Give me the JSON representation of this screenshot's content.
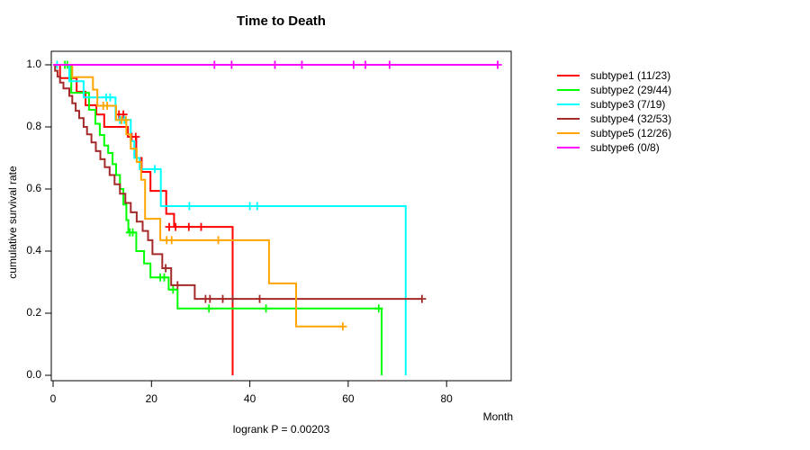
{
  "chart_data": {
    "type": "line",
    "subtype": "kaplan-meier-step",
    "title": "Time to Death",
    "xlabel": "Month",
    "ylabel": "cumulative survival rate",
    "annotation": "logrank P = 0.00203",
    "xlim": [
      0,
      93
    ],
    "ylim": [
      0.0,
      1.0
    ],
    "x_ticks": [
      0,
      20,
      40,
      60,
      80
    ],
    "y_ticks": [
      0.0,
      0.2,
      0.4,
      0.6,
      0.8,
      1.0
    ],
    "grid": false,
    "legend_position": "right-outside",
    "frame": "box",
    "series": [
      {
        "name": "subtype1",
        "label": "subtype1 (11/23)",
        "events": "11/23",
        "color": "#FF0000",
        "steps": [
          [
            1.4,
            0.957
          ],
          [
            4.8,
            0.913
          ],
          [
            6.6,
            0.87
          ],
          [
            8.8,
            0.84
          ],
          [
            10.4,
            0.8
          ],
          [
            15.2,
            0.768
          ],
          [
            16.9,
            0.7
          ],
          [
            18.0,
            0.655
          ],
          [
            19.8,
            0.594
          ],
          [
            23.0,
            0.52
          ],
          [
            24.6,
            0.478
          ],
          [
            36.5,
            0.0
          ]
        ],
        "end": 36.5,
        "censored": [
          [
            13.4,
            0.84
          ],
          [
            14.3,
            0.84
          ],
          [
            16.0,
            0.768
          ],
          [
            16.8,
            0.768
          ],
          [
            23.6,
            0.478
          ],
          [
            24.9,
            0.478
          ],
          [
            27.6,
            0.478
          ],
          [
            30.1,
            0.478
          ]
        ]
      },
      {
        "name": "subtype2",
        "label": "subtype2 (29/44)",
        "events": "29/44",
        "color": "#00FF00",
        "steps": [
          [
            3.7,
            0.91
          ],
          [
            7.3,
            0.855
          ],
          [
            8.6,
            0.81
          ],
          [
            9.5,
            0.774
          ],
          [
            10.4,
            0.74
          ],
          [
            11.2,
            0.716
          ],
          [
            12.1,
            0.68
          ],
          [
            12.8,
            0.645
          ],
          [
            13.6,
            0.6
          ],
          [
            14.3,
            0.55
          ],
          [
            14.9,
            0.5
          ],
          [
            15.3,
            0.46
          ],
          [
            16.9,
            0.4
          ],
          [
            18.5,
            0.36
          ],
          [
            19.8,
            0.315
          ],
          [
            23.5,
            0.276
          ],
          [
            25.3,
            0.215
          ],
          [
            66.8,
            0.0
          ]
        ],
        "end": 66.8,
        "censored": [
          [
            2.4,
            1.0
          ],
          [
            2.9,
            1.0
          ],
          [
            15.6,
            0.46
          ],
          [
            16.2,
            0.46
          ],
          [
            21.8,
            0.315
          ],
          [
            22.6,
            0.315
          ],
          [
            24.4,
            0.276
          ],
          [
            31.7,
            0.215
          ],
          [
            43.3,
            0.215
          ],
          [
            66.2,
            0.215
          ]
        ]
      },
      {
        "name": "subtype3",
        "label": "subtype3 (7/19)",
        "events": "7/19",
        "color": "#00FFFF",
        "steps": [
          [
            3.3,
            0.947
          ],
          [
            6.2,
            0.895
          ],
          [
            12.7,
            0.823
          ],
          [
            15.8,
            0.754
          ],
          [
            16.5,
            0.7
          ],
          [
            17.6,
            0.664
          ],
          [
            21.9,
            0.545
          ],
          [
            71.7,
            0.0
          ]
        ],
        "end": 71.7,
        "censored": [
          [
            0.8,
            1.0
          ],
          [
            10.8,
            0.895
          ],
          [
            11.6,
            0.895
          ],
          [
            13.6,
            0.823
          ],
          [
            14.5,
            0.823
          ],
          [
            20.7,
            0.664
          ],
          [
            27.7,
            0.545
          ],
          [
            40.0,
            0.545
          ],
          [
            41.5,
            0.545
          ]
        ]
      },
      {
        "name": "subtype4",
        "label": "subtype4 (32/53)",
        "events": "32/53",
        "color": "#A52A2A",
        "steps": [
          [
            0.4,
            0.981
          ],
          [
            0.9,
            0.962
          ],
          [
            1.4,
            0.943
          ],
          [
            2.1,
            0.924
          ],
          [
            3.3,
            0.9
          ],
          [
            3.9,
            0.876
          ],
          [
            4.6,
            0.852
          ],
          [
            5.3,
            0.828
          ],
          [
            6.2,
            0.8
          ],
          [
            6.9,
            0.776
          ],
          [
            7.8,
            0.75
          ],
          [
            8.7,
            0.722
          ],
          [
            9.6,
            0.696
          ],
          [
            10.5,
            0.67
          ],
          [
            11.5,
            0.645
          ],
          [
            12.5,
            0.615
          ],
          [
            13.6,
            0.585
          ],
          [
            14.7,
            0.555
          ],
          [
            15.8,
            0.525
          ],
          [
            17.0,
            0.495
          ],
          [
            18.2,
            0.465
          ],
          [
            19.3,
            0.435
          ],
          [
            20.2,
            0.39
          ],
          [
            22.2,
            0.345
          ],
          [
            24.0,
            0.29
          ],
          [
            28.8,
            0.246
          ]
        ],
        "end": 75.0,
        "censored": [
          [
            22.9,
            0.345
          ],
          [
            25.3,
            0.29
          ],
          [
            31.0,
            0.246
          ],
          [
            31.9,
            0.246
          ],
          [
            34.5,
            0.246
          ],
          [
            36.5,
            0.246
          ],
          [
            42.0,
            0.246
          ],
          [
            75.0,
            0.246
          ]
        ]
      },
      {
        "name": "subtype5",
        "label": "subtype5 (12/26)",
        "events": "12/26",
        "color": "#FFA500",
        "steps": [
          [
            3.9,
            0.96
          ],
          [
            8.1,
            0.92
          ],
          [
            9.0,
            0.868
          ],
          [
            12.8,
            0.822
          ],
          [
            14.9,
            0.776
          ],
          [
            15.8,
            0.73
          ],
          [
            17.0,
            0.687
          ],
          [
            17.9,
            0.63
          ],
          [
            18.7,
            0.504
          ],
          [
            21.8,
            0.435
          ],
          [
            43.9,
            0.296
          ],
          [
            49.4,
            0.157
          ]
        ],
        "end": 58.9,
        "censored": [
          [
            10.2,
            0.868
          ],
          [
            11.0,
            0.868
          ],
          [
            13.9,
            0.822
          ],
          [
            14.8,
            0.822
          ],
          [
            23.1,
            0.435
          ],
          [
            24.1,
            0.435
          ],
          [
            33.6,
            0.435
          ],
          [
            58.9,
            0.157
          ]
        ]
      },
      {
        "name": "subtype6",
        "label": "subtype6 (0/8)",
        "events": "0/8",
        "color": "#FF00FF",
        "steps": [],
        "end": 90.5,
        "censored": [
          [
            32.8,
            1.0
          ],
          [
            36.3,
            1.0
          ],
          [
            45.1,
            1.0
          ],
          [
            50.6,
            1.0
          ],
          [
            61.1,
            1.0
          ],
          [
            63.5,
            1.0
          ],
          [
            68.4,
            1.0
          ],
          [
            90.4,
            1.0
          ]
        ]
      }
    ]
  }
}
